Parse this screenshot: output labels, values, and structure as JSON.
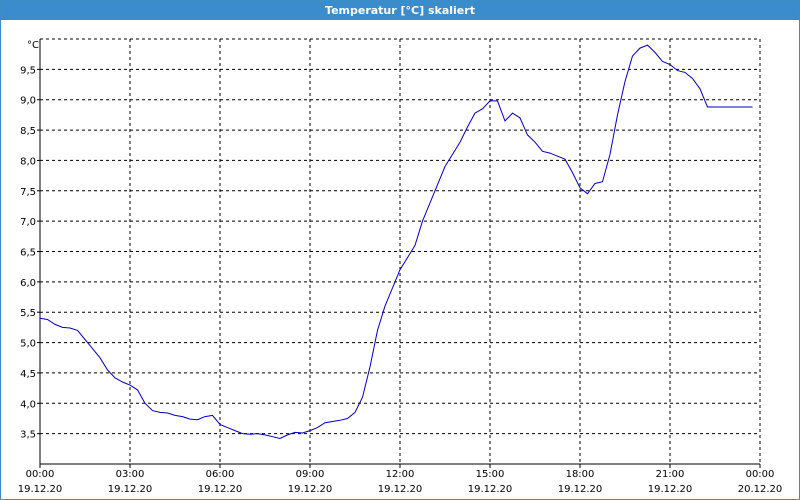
{
  "window": {
    "title": "Temperatur [°C] skaliert"
  },
  "chart_data": {
    "type": "line",
    "title": "Temperatur [°C] skaliert",
    "ylabel": "°C",
    "xlabel": "",
    "ylim": [
      3.0,
      10.0
    ],
    "yticks": [
      "3,5",
      "4,0",
      "4,5",
      "5,0",
      "5,5",
      "6,0",
      "6,5",
      "7,0",
      "7,5",
      "8,0",
      "8,5",
      "9,0",
      "9,5"
    ],
    "x_range_hours": [
      0,
      24
    ],
    "xticks": [
      {
        "time": "00:00",
        "date": "19.12.20"
      },
      {
        "time": "03:00",
        "date": "19.12.20"
      },
      {
        "time": "06:00",
        "date": "19.12.20"
      },
      {
        "time": "09:00",
        "date": "19.12.20"
      },
      {
        "time": "12:00",
        "date": "19.12.20"
      },
      {
        "time": "15:00",
        "date": "19.12.20"
      },
      {
        "time": "18:00",
        "date": "19.12.20"
      },
      {
        "time": "21:00",
        "date": "19.12.20"
      },
      {
        "time": "00:00",
        "date": "20.12.20"
      }
    ],
    "grid": true,
    "line_color": "#0000c0",
    "series": [
      {
        "x": [
          0.0,
          0.25,
          0.5,
          0.75,
          1.0,
          1.25,
          1.5,
          1.75,
          2.0,
          2.25,
          2.5,
          2.75,
          3.0,
          3.25,
          3.5,
          3.75,
          4.0,
          4.25,
          4.5,
          4.75,
          5.0,
          5.25,
          5.5,
          5.75,
          6.0,
          6.25,
          6.5,
          6.75,
          7.0,
          7.25,
          7.5,
          7.75,
          8.0,
          8.25,
          8.5,
          8.75,
          9.0,
          9.25,
          9.5,
          9.75,
          10.0,
          10.25,
          10.5,
          10.75,
          11.0,
          11.25,
          11.5,
          11.75,
          12.0,
          12.25,
          12.5,
          12.75,
          13.0,
          13.25,
          13.5,
          13.75,
          14.0,
          14.25,
          14.5,
          14.75,
          15.0,
          15.25,
          15.5,
          15.75,
          16.0,
          16.25,
          16.5,
          16.75,
          17.0,
          17.25,
          17.5,
          17.75,
          18.0,
          18.25,
          18.5,
          18.75,
          19.0,
          19.25,
          19.5,
          19.75,
          20.0,
          20.25,
          20.5,
          20.75,
          21.0,
          21.25,
          21.5,
          21.75,
          22.0,
          22.25,
          22.5,
          22.75,
          23.0,
          23.25,
          23.5,
          23.75,
          24.0
        ],
        "values": [
          5.4,
          5.38,
          5.3,
          5.25,
          5.24,
          5.2,
          5.05,
          4.9,
          4.75,
          4.55,
          4.42,
          4.35,
          4.3,
          4.22,
          4.0,
          3.88,
          3.85,
          3.84,
          3.8,
          3.78,
          3.74,
          3.73,
          3.78,
          3.8,
          3.65,
          3.6,
          3.55,
          3.5,
          3.49,
          3.5,
          3.48,
          3.45,
          3.42,
          3.48,
          3.52,
          3.51,
          3.55,
          3.6,
          3.68,
          3.7,
          3.72,
          3.75,
          3.85,
          4.1,
          4.6,
          5.2,
          5.6,
          5.9,
          6.2,
          6.4,
          6.6,
          7.0,
          7.3,
          7.6,
          7.9,
          8.1,
          8.3,
          8.55,
          8.78,
          8.85,
          8.98,
          8.98,
          8.65,
          8.78,
          8.7,
          8.42,
          8.3,
          8.15,
          8.12,
          8.07,
          8.02,
          7.8,
          7.55,
          7.45,
          7.62,
          7.65,
          8.1,
          8.75,
          9.3,
          9.72,
          9.85,
          9.9,
          9.78,
          9.63,
          9.58,
          9.48,
          9.45,
          9.35,
          9.18,
          8.88,
          8.88,
          8.88,
          8.88,
          8.88,
          8.88,
          8.88,
          8.88
        ]
      }
    ]
  }
}
